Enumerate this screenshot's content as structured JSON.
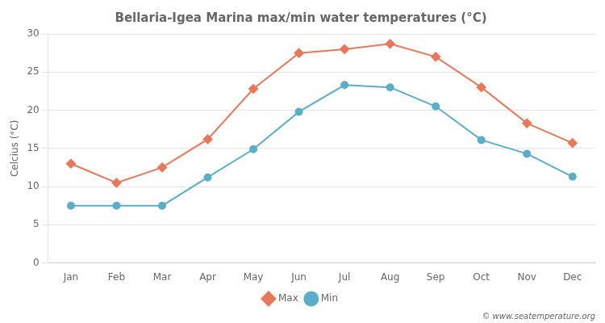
{
  "chart_data": {
    "type": "line",
    "title": "Bellaria-Igea Marina max/min water temperatures (°C)",
    "ylabel": "Celcius (°C)",
    "categories": [
      "Jan",
      "Feb",
      "Mar",
      "Apr",
      "May",
      "Jun",
      "Jul",
      "Aug",
      "Sep",
      "Oct",
      "Nov",
      "Dec"
    ],
    "series": [
      {
        "name": "Max",
        "color": "#e8785a",
        "marker": "diamond",
        "values": [
          13.0,
          10.5,
          12.5,
          16.2,
          22.8,
          27.5,
          28.0,
          28.7,
          27.0,
          23.0,
          18.3,
          15.7
        ]
      },
      {
        "name": "Min",
        "color": "#5aaec8",
        "marker": "circle",
        "values": [
          7.5,
          7.5,
          7.5,
          11.2,
          14.9,
          19.8,
          23.3,
          23.0,
          20.5,
          16.1,
          14.3,
          11.3
        ]
      }
    ],
    "ylim": [
      0,
      30
    ],
    "yticks": [
      0,
      5,
      10,
      15,
      20,
      25,
      30
    ],
    "grid": true,
    "legend": "bottom",
    "annotations": [
      "© www.seatemperature.org"
    ]
  }
}
